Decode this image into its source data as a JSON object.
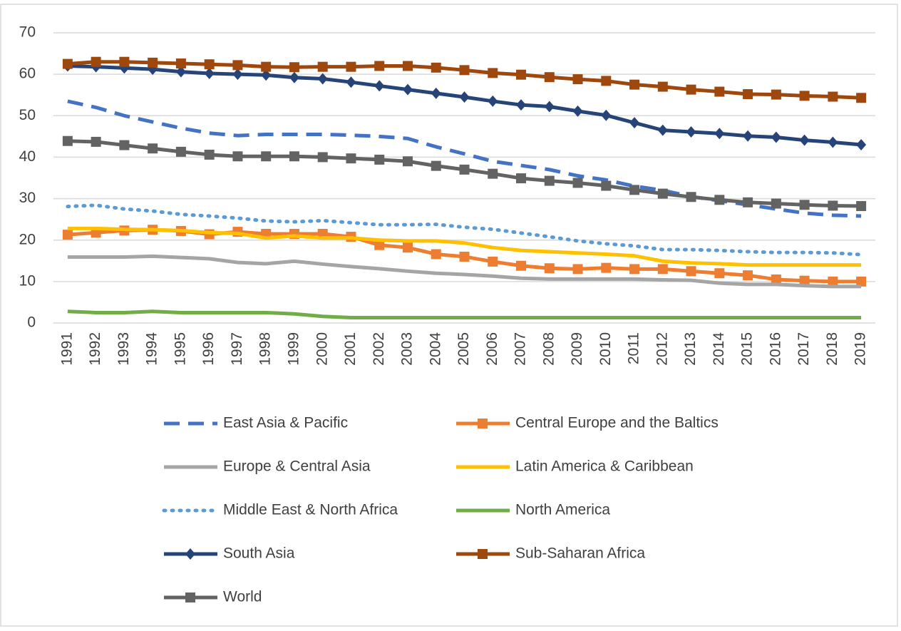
{
  "chart_data": {
    "type": "line",
    "categories": [
      "1991",
      "1992",
      "1993",
      "1994",
      "1995",
      "1996",
      "1997",
      "1998",
      "1999",
      "2000",
      "2001",
      "2002",
      "2003",
      "2004",
      "2005",
      "2006",
      "2007",
      "2008",
      "2009",
      "2010",
      "2011",
      "2012",
      "2013",
      "2014",
      "2015",
      "2016",
      "2017",
      "2018",
      "2019"
    ],
    "ylim": [
      0,
      70
    ],
    "yticks": [
      0,
      10,
      20,
      30,
      40,
      50,
      60,
      70
    ],
    "grid": true,
    "series": [
      {
        "name": "East Asia & Pacific",
        "color": "#4472c4",
        "dash": "dashed",
        "marker": "none",
        "values": [
          53.5,
          52,
          50,
          48.5,
          47,
          45.8,
          45.2,
          45.5,
          45.5,
          45.5,
          45.3,
          45,
          44.5,
          42.5,
          40.8,
          39,
          38,
          37,
          35.5,
          34.5,
          33,
          32,
          30.5,
          29.5,
          28.5,
          27.5,
          26.5,
          26,
          25.8
        ]
      },
      {
        "name": "Central Europe and the Baltics",
        "color": "#ed7d31",
        "dash": "solid",
        "marker": "square",
        "values": [
          21.3,
          21.8,
          22.3,
          22.5,
          22.2,
          21.4,
          22,
          21.5,
          21.5,
          21.5,
          20.8,
          18.8,
          18.2,
          16.6,
          16,
          14.8,
          13.8,
          13.2,
          13,
          13.3,
          13,
          13,
          12.5,
          12,
          11.5,
          10.5,
          10.2,
          10,
          10
        ]
      },
      {
        "name": "Europe & Central Asia",
        "color": "#a5a5a5",
        "dash": "solid",
        "marker": "none",
        "values": [
          15.9,
          15.9,
          15.9,
          16.1,
          15.8,
          15.5,
          14.6,
          14.3,
          14.9,
          14.2,
          13.6,
          13.1,
          12.5,
          12,
          11.7,
          11.3,
          10.8,
          10.6,
          10.6,
          10.6,
          10.6,
          10.4,
          10.3,
          9.6,
          9.3,
          9.3,
          9,
          8.8,
          8.8
        ]
      },
      {
        "name": "Latin America & Caribbean",
        "color": "#ffc000",
        "dash": "solid",
        "marker": "none",
        "values": [
          22.8,
          22.8,
          22.6,
          22.5,
          22.3,
          21.8,
          21.6,
          20.5,
          21,
          20.5,
          20.5,
          20,
          19.8,
          19.8,
          19.3,
          18.2,
          17.5,
          17.2,
          16.9,
          16.6,
          16.2,
          14.9,
          14.5,
          14.3,
          14,
          14,
          14,
          14,
          14
        ]
      },
      {
        "name": "Middle East & North Africa",
        "color": "#5b9bd5",
        "dash": "dotted",
        "marker": "none",
        "values": [
          28.1,
          28.4,
          27.5,
          27,
          26.2,
          25.8,
          25.3,
          24.6,
          24.4,
          24.7,
          24.2,
          23.7,
          23.7,
          23.8,
          23.1,
          22.6,
          21.7,
          20.8,
          19.8,
          19.1,
          18.6,
          17.7,
          17.7,
          17.5,
          17.2,
          17,
          17,
          16.9,
          16.5
        ]
      },
      {
        "name": "North America",
        "color": "#70ad47",
        "dash": "solid",
        "marker": "none",
        "values": [
          2.8,
          2.5,
          2.5,
          2.8,
          2.5,
          2.5,
          2.5,
          2.5,
          2.2,
          1.6,
          1.3,
          1.3,
          1.3,
          1.3,
          1.3,
          1.3,
          1.3,
          1.3,
          1.3,
          1.3,
          1.3,
          1.3,
          1.3,
          1.3,
          1.3,
          1.3,
          1.3,
          1.3,
          1.3
        ]
      },
      {
        "name": "South Asia",
        "color": "#264478",
        "dash": "solid",
        "marker": "diamond",
        "values": [
          62,
          61.8,
          61.5,
          61.2,
          60.6,
          60.2,
          60,
          59.8,
          59.2,
          58.9,
          58.1,
          57.2,
          56.3,
          55.4,
          54.5,
          53.5,
          52.6,
          52.2,
          51.1,
          50.1,
          48.3,
          46.5,
          46.1,
          45.7,
          45.1,
          44.8,
          44.1,
          43.6,
          43
        ]
      },
      {
        "name": "Sub-Saharan Africa",
        "color": "#9e480e",
        "dash": "solid",
        "marker": "square",
        "values": [
          62.5,
          63,
          63,
          62.8,
          62.6,
          62.4,
          62.2,
          61.8,
          61.7,
          61.8,
          61.8,
          62,
          62,
          61.6,
          61,
          60.3,
          59.9,
          59.3,
          58.8,
          58.4,
          57.5,
          57,
          56.3,
          55.8,
          55.2,
          55.1,
          54.8,
          54.6,
          54.3
        ]
      },
      {
        "name": "World",
        "color": "#636363",
        "dash": "solid",
        "marker": "square",
        "values": [
          43.9,
          43.7,
          42.9,
          42.1,
          41.3,
          40.6,
          40.2,
          40.2,
          40.2,
          40,
          39.7,
          39.4,
          39,
          37.9,
          37,
          36,
          34.9,
          34.3,
          33.8,
          33.1,
          32.1,
          31.2,
          30.4,
          29.7,
          29.1,
          28.8,
          28.5,
          28.3,
          28.2
        ]
      }
    ]
  }
}
